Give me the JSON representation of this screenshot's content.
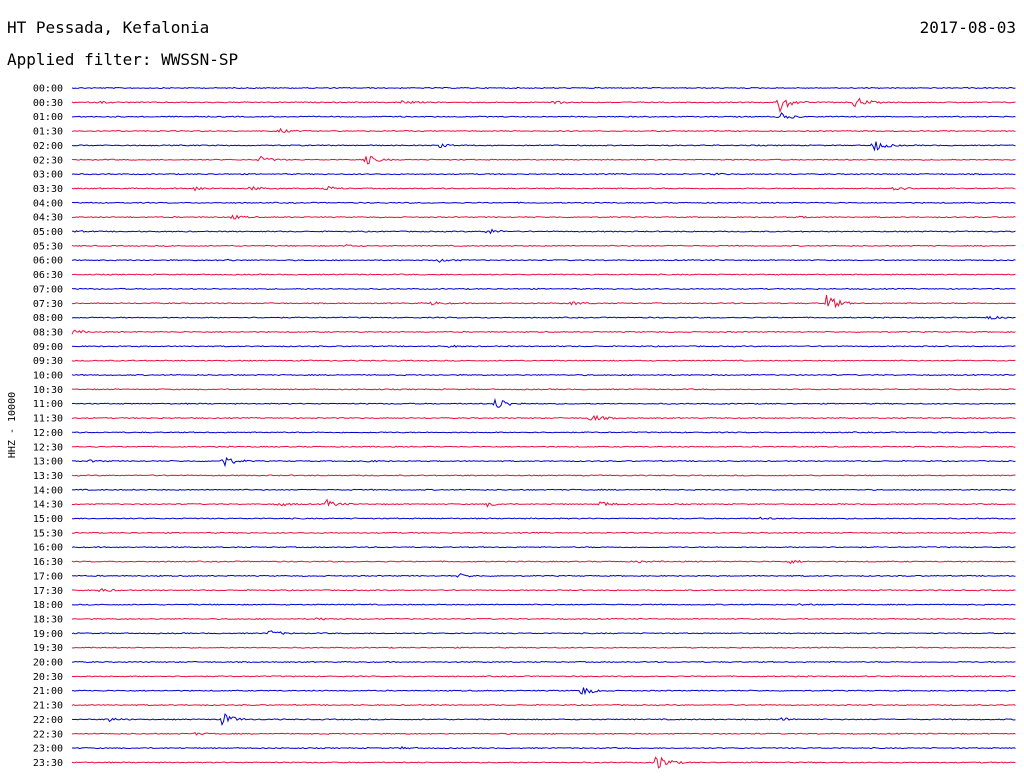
{
  "header": {
    "station": "HT Pessada, Kefalonia",
    "date": "2017-08-03",
    "filter": "Applied filter: WWSSN-SP"
  },
  "chart_data": {
    "type": "line",
    "ylabel": "HHZ - 10000",
    "colors": [
      "#0000d0",
      "#e8103c"
    ],
    "grid": false,
    "rows": [
      {
        "label": "00:00",
        "color": "#0000d0",
        "events": []
      },
      {
        "label": "00:30",
        "color": "#e8103c",
        "events": [
          {
            "at": 0.03,
            "amp": 1
          },
          {
            "at": 0.35,
            "amp": 2
          },
          {
            "at": 0.51,
            "amp": 2
          },
          {
            "at": 0.75,
            "amp": 10
          },
          {
            "at": 0.83,
            "amp": 6
          }
        ]
      },
      {
        "label": "01:00",
        "color": "#0000d0",
        "events": [
          {
            "at": 0.75,
            "amp": 4
          }
        ]
      },
      {
        "label": "01:30",
        "color": "#e8103c",
        "events": [
          {
            "at": 0.22,
            "amp": 2
          }
        ]
      },
      {
        "label": "02:00",
        "color": "#0000d0",
        "events": [
          {
            "at": 0.39,
            "amp": 2
          },
          {
            "at": 0.85,
            "amp": 6
          }
        ]
      },
      {
        "label": "02:30",
        "color": "#e8103c",
        "events": [
          {
            "at": 0.2,
            "amp": 3
          },
          {
            "at": 0.31,
            "amp": 6
          }
        ]
      },
      {
        "label": "03:00",
        "color": "#0000d0",
        "events": [
          {
            "at": 0.68,
            "amp": 1
          }
        ]
      },
      {
        "label": "03:30",
        "color": "#e8103c",
        "events": [
          {
            "at": 0.13,
            "amp": 2
          },
          {
            "at": 0.19,
            "amp": 2
          },
          {
            "at": 0.27,
            "amp": 2
          },
          {
            "at": 0.87,
            "amp": 3
          }
        ]
      },
      {
        "label": "04:00",
        "color": "#0000d0",
        "events": []
      },
      {
        "label": "04:30",
        "color": "#e8103c",
        "events": [
          {
            "at": 0.17,
            "amp": 2
          },
          {
            "at": 0.77,
            "amp": 1
          }
        ]
      },
      {
        "label": "05:00",
        "color": "#0000d0",
        "events": [
          {
            "at": 0.0,
            "amp": 1
          },
          {
            "at": 0.44,
            "amp": 3
          }
        ]
      },
      {
        "label": "05:30",
        "color": "#e8103c",
        "events": [
          {
            "at": 0.29,
            "amp": 1
          }
        ]
      },
      {
        "label": "06:00",
        "color": "#0000d0",
        "events": [
          {
            "at": 0.16,
            "amp": 1
          },
          {
            "at": 0.39,
            "amp": 2
          }
        ]
      },
      {
        "label": "06:30",
        "color": "#e8103c",
        "events": []
      },
      {
        "label": "07:00",
        "color": "#0000d0",
        "events": []
      },
      {
        "label": "07:30",
        "color": "#e8103c",
        "events": [
          {
            "at": 0.38,
            "amp": 2
          },
          {
            "at": 0.53,
            "amp": 2
          },
          {
            "at": 0.8,
            "amp": 10
          }
        ]
      },
      {
        "label": "08:00",
        "color": "#0000d0",
        "events": [
          {
            "at": 0.97,
            "amp": 2
          }
        ]
      },
      {
        "label": "08:30",
        "color": "#e8103c",
        "events": [
          {
            "at": 0.0,
            "amp": 2
          }
        ]
      },
      {
        "label": "09:00",
        "color": "#0000d0",
        "events": [
          {
            "at": 0.4,
            "amp": 1
          }
        ]
      },
      {
        "label": "09:30",
        "color": "#e8103c",
        "events": []
      },
      {
        "label": "10:00",
        "color": "#0000d0",
        "events": []
      },
      {
        "label": "10:30",
        "color": "#e8103c",
        "events": []
      },
      {
        "label": "11:00",
        "color": "#0000d0",
        "events": [
          {
            "at": 0.45,
            "amp": 7
          }
        ]
      },
      {
        "label": "11:30",
        "color": "#e8103c",
        "events": [
          {
            "at": 0.55,
            "amp": 4
          }
        ]
      },
      {
        "label": "12:00",
        "color": "#0000d0",
        "events": []
      },
      {
        "label": "12:30",
        "color": "#e8103c",
        "events": []
      },
      {
        "label": "13:00",
        "color": "#0000d0",
        "events": [
          {
            "at": 0.02,
            "amp": 1
          },
          {
            "at": 0.16,
            "amp": 6
          },
          {
            "at": 0.31,
            "amp": 1
          }
        ]
      },
      {
        "label": "13:30",
        "color": "#e8103c",
        "events": []
      },
      {
        "label": "14:00",
        "color": "#0000d0",
        "events": []
      },
      {
        "label": "14:30",
        "color": "#e8103c",
        "events": [
          {
            "at": 0.22,
            "amp": 2
          },
          {
            "at": 0.27,
            "amp": 4
          },
          {
            "at": 0.44,
            "amp": 2
          },
          {
            "at": 0.56,
            "amp": 3
          }
        ]
      },
      {
        "label": "15:00",
        "color": "#0000d0",
        "events": [
          {
            "at": 0.73,
            "amp": 1
          }
        ]
      },
      {
        "label": "15:30",
        "color": "#e8103c",
        "events": []
      },
      {
        "label": "16:00",
        "color": "#0000d0",
        "events": []
      },
      {
        "label": "16:30",
        "color": "#e8103c",
        "events": [
          {
            "at": 0.6,
            "amp": 1
          },
          {
            "at": 0.76,
            "amp": 2
          }
        ]
      },
      {
        "label": "17:00",
        "color": "#0000d0",
        "events": [
          {
            "at": 0.41,
            "amp": 2
          }
        ]
      },
      {
        "label": "17:30",
        "color": "#e8103c",
        "events": [
          {
            "at": 0.03,
            "amp": 2
          }
        ]
      },
      {
        "label": "18:00",
        "color": "#0000d0",
        "events": [
          {
            "at": 0.77,
            "amp": 1
          }
        ]
      },
      {
        "label": "18:30",
        "color": "#e8103c",
        "events": [
          {
            "at": 0.26,
            "amp": 1
          }
        ]
      },
      {
        "label": "19:00",
        "color": "#0000d0",
        "events": [
          {
            "at": 0.21,
            "amp": 3
          }
        ]
      },
      {
        "label": "19:30",
        "color": "#e8103c",
        "events": []
      },
      {
        "label": "20:00",
        "color": "#0000d0",
        "events": []
      },
      {
        "label": "20:30",
        "color": "#e8103c",
        "events": []
      },
      {
        "label": "21:00",
        "color": "#0000d0",
        "events": [
          {
            "at": 0.54,
            "amp": 5
          }
        ]
      },
      {
        "label": "21:30",
        "color": "#e8103c",
        "events": []
      },
      {
        "label": "22:00",
        "color": "#0000d0",
        "events": [
          {
            "at": 0.04,
            "amp": 2
          },
          {
            "at": 0.16,
            "amp": 7
          },
          {
            "at": 0.75,
            "amp": 2
          }
        ]
      },
      {
        "label": "22:30",
        "color": "#e8103c",
        "events": [
          {
            "at": 0.13,
            "amp": 1
          }
        ]
      },
      {
        "label": "23:00",
        "color": "#0000d0",
        "events": [
          {
            "at": 0.35,
            "amp": 1
          }
        ]
      },
      {
        "label": "23:30",
        "color": "#e8103c",
        "events": [
          {
            "at": 0.62,
            "amp": 9
          }
        ]
      }
    ]
  }
}
